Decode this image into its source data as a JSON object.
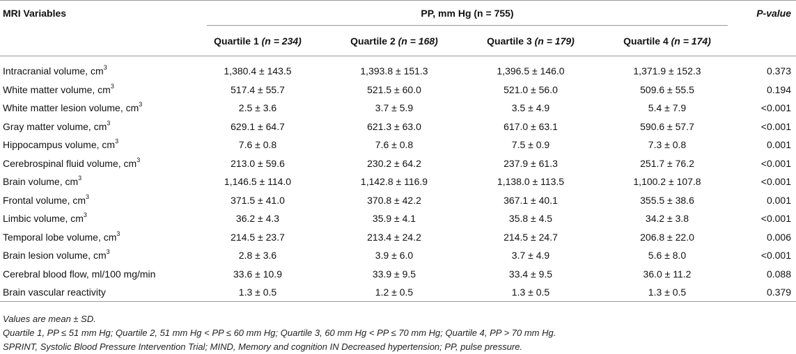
{
  "table": {
    "header": {
      "variables_label": "MRI Variables",
      "group_label": "PP, mm Hg (n = 755)",
      "pvalue_label": "P-value",
      "quartiles": [
        {
          "name": "Quartile 1",
          "n": "(n = 234)"
        },
        {
          "name": "Quartile 2",
          "n": "(n = 168)"
        },
        {
          "name": "Quartile 3",
          "n": "(n = 179)"
        },
        {
          "name": "Quartile 4",
          "n": "(n = 174)"
        }
      ]
    },
    "rows": [
      {
        "label": "Intracranial volume, cm",
        "sup": "3",
        "q1": "1,380.4 ± 143.5",
        "q2": "1,393.8 ± 151.3",
        "q3": "1,396.5 ± 146.0",
        "q4": "1,371.9 ± 152.3",
        "p": "0.373"
      },
      {
        "label": "White matter volume, cm",
        "sup": "3",
        "q1": "517.4 ± 55.7",
        "q2": "521.5 ± 60.0",
        "q3": "521.0 ± 56.0",
        "q4": "509.6 ± 55.5",
        "p": "0.194"
      },
      {
        "label": "White matter lesion volume, cm",
        "sup": "3",
        "q1": "2.5 ± 3.6",
        "q2": "3.7 ± 5.9",
        "q3": "3.5 ± 4.9",
        "q4": "5.4 ± 7.9",
        "p": "<0.001"
      },
      {
        "label": "Gray matter volume, cm",
        "sup": "3",
        "q1": "629.1 ± 64.7",
        "q2": "621.3 ± 63.0",
        "q3": "617.0 ± 63.1",
        "q4": "590.6 ± 57.7",
        "p": "<0.001"
      },
      {
        "label": "Hippocampus volume, cm",
        "sup": "3",
        "q1": "7.6 ± 0.8",
        "q2": "7.6 ± 0.8",
        "q3": "7.5 ± 0.9",
        "q4": "7.3 ± 0.8",
        "p": "0.001"
      },
      {
        "label": "Cerebrospinal fluid volume, cm",
        "sup": "3",
        "q1": "213.0 ± 59.6",
        "q2": "230.2 ± 64.2",
        "q3": "237.9 ± 61.3",
        "q4": "251.7 ± 76.2",
        "p": "<0.001"
      },
      {
        "label": "Brain volume, cm",
        "sup": "3",
        "q1": "1,146.5 ± 114.0",
        "q2": "1,142.8 ± 116.9",
        "q3": "1,138.0 ± 113.5",
        "q4": "1,100.2 ± 107.8",
        "p": "<0.001"
      },
      {
        "label": "Frontal volume, cm",
        "sup": "3",
        "q1": "371.5 ± 41.0",
        "q2": "370.8 ± 42.2",
        "q3": "367.1 ± 40.1",
        "q4": "355.5 ± 38.6",
        "p": "0.001"
      },
      {
        "label": "Limbic volume, cm",
        "sup": "3",
        "q1": "36.2 ± 4.3",
        "q2": "35.9 ± 4.1",
        "q3": "35.8 ± 4.5",
        "q4": "34.2 ± 3.8",
        "p": "<0.001"
      },
      {
        "label": "Temporal lobe volume, cm",
        "sup": "3",
        "q1": "214.5 ± 23.7",
        "q2": "213.4 ± 24.2",
        "q3": "214.5 ± 24.7",
        "q4": "206.8 ± 22.0",
        "p": "0.006"
      },
      {
        "label": "Brain lesion volume, cm",
        "sup": "3",
        "q1": "2.8 ± 3.6",
        "q2": "3.9 ± 6.0",
        "q3": "3.7 ± 4.9",
        "q4": "5.6 ± 8.0",
        "p": "<0.001"
      },
      {
        "label": "Cerebral blood flow, ml/100 mg/min",
        "sup": "",
        "q1": "33.6 ± 10.9",
        "q2": "33.9 ± 9.5",
        "q3": "33.4 ± 9.5",
        "q4": "36.0 ± 11.2",
        "p": "0.088"
      },
      {
        "label": "Brain vascular reactivity",
        "sup": "",
        "q1": "1.3 ± 0.5",
        "q2": "1.2 ± 0.5",
        "q3": "1.3 ± 0.5",
        "q4": "1.3 ± 0.5",
        "p": "0.379"
      }
    ],
    "footnotes": [
      "Values are mean ± SD.",
      "Quartile 1, PP ≤ 51 mm Hg; Quartile 2, 51 mm Hg < PP ≤ 60 mm Hg; Quartile 3, 60 mm Hg < PP ≤ 70 mm Hg; Quartile 4, PP > 70 mm Hg.",
      "SPRINT, Systolic Blood Pressure Intervention Trial; MIND, Memory and cognition IN Decreased hypertension; PP, pulse pressure."
    ]
  }
}
